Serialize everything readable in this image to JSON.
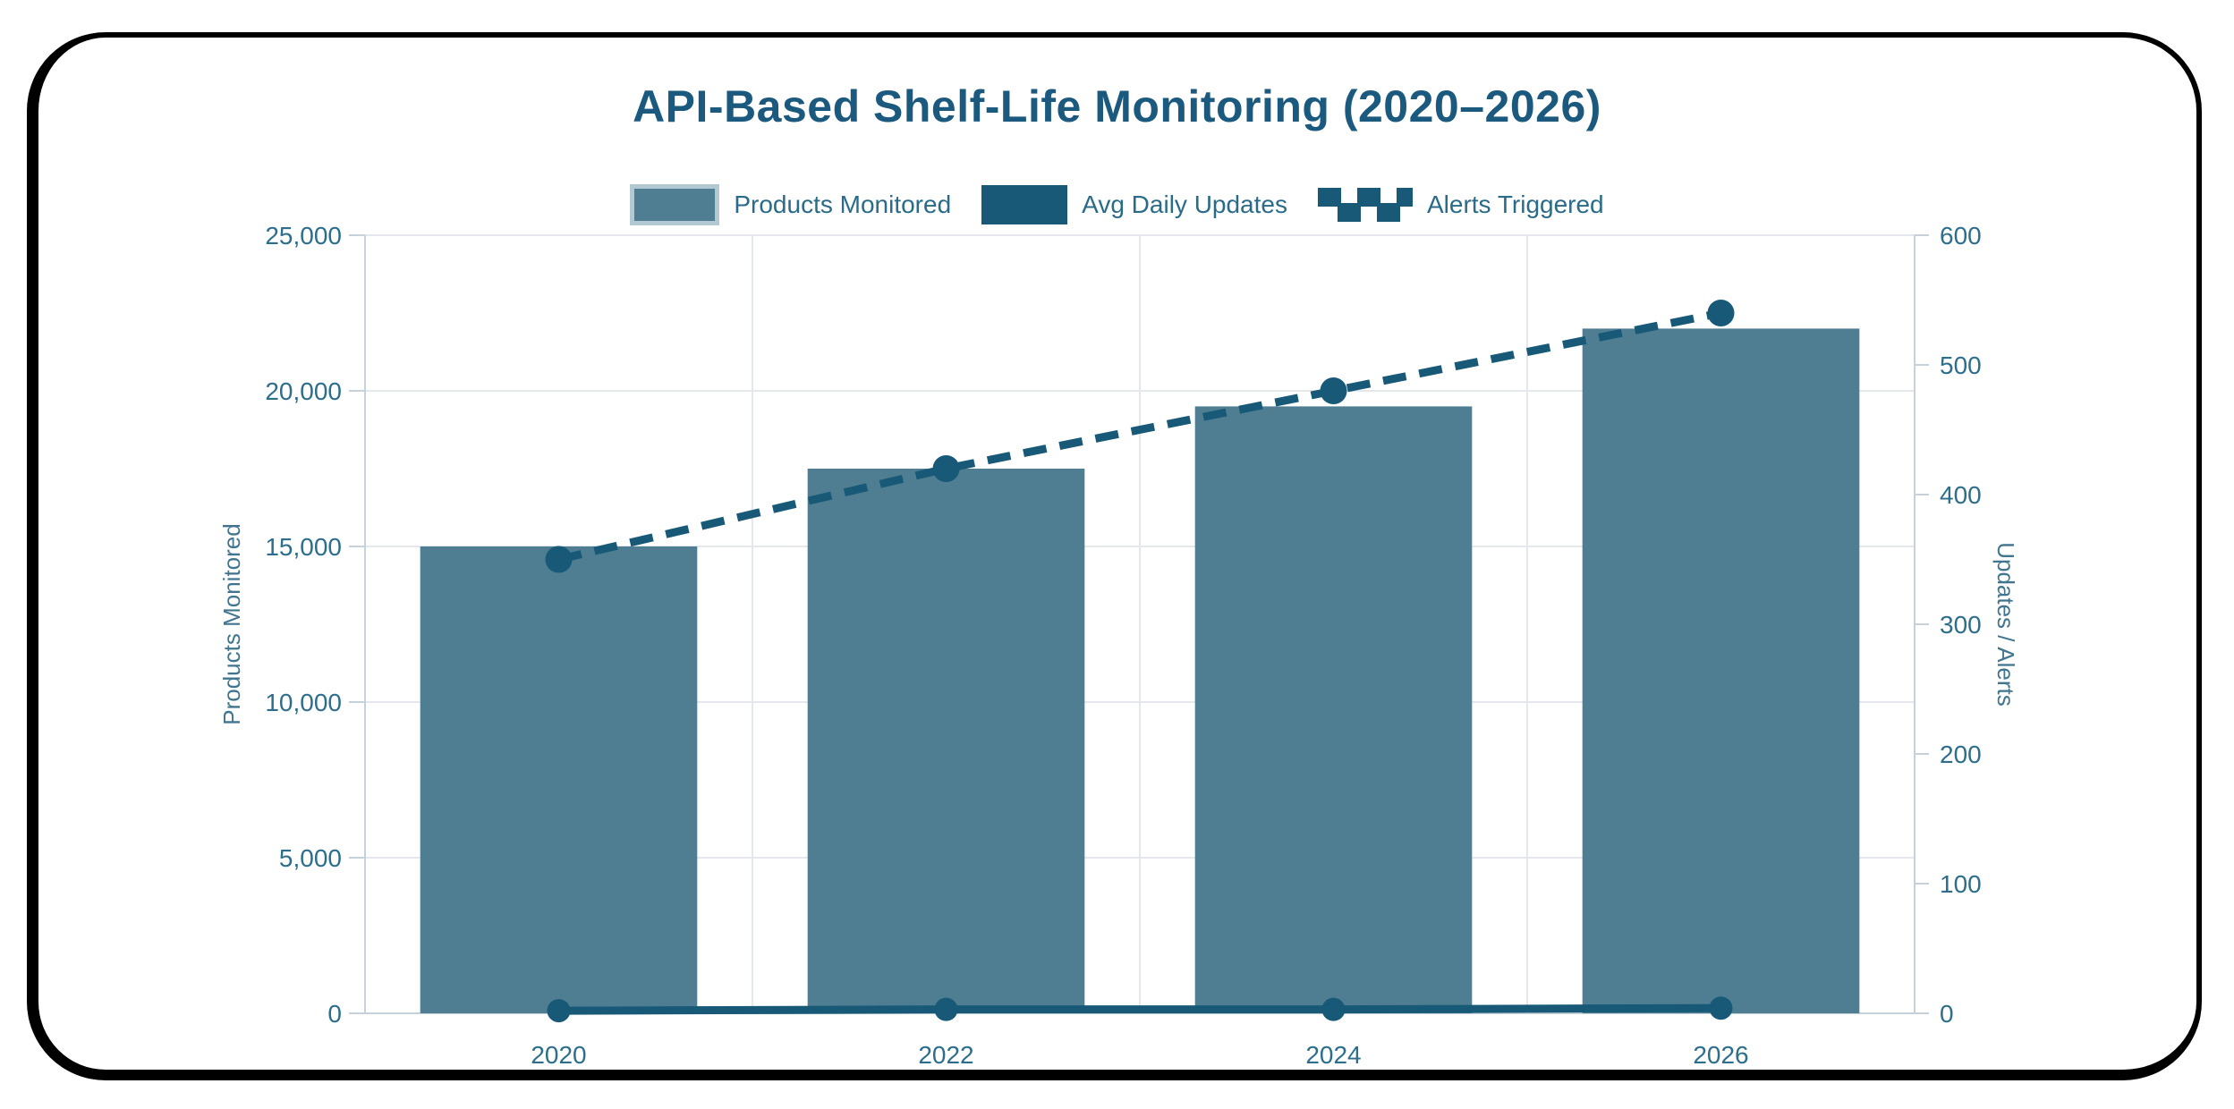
{
  "title": "API-Based Shelf-Life Monitoring (2020–2026)",
  "colors": {
    "background": "#ffffff",
    "frame": "#000000",
    "title_text": "#1b5a7e",
    "bar_fill": "#4f7e92",
    "bar_legend_border": "#b2c8d3",
    "dark_series": "#175977",
    "tick_label": "#2d6e8c",
    "axis_name": "#41758f",
    "gridline": "#e4e8ec",
    "axis_line": "#c6d1d9"
  },
  "legend": {
    "items": [
      {
        "label": "Products Monitored",
        "swatch": "bar-swatch"
      },
      {
        "label": "Avg Daily Updates",
        "swatch": "solid-line-swatch"
      },
      {
        "label": "Alerts Triggered",
        "swatch": "dashed-line-swatch"
      }
    ]
  },
  "chart_data": {
    "type": "bar",
    "title": "API-Based Shelf-Life Monitoring (2020–2026)",
    "categories": [
      "2020",
      "2022",
      "2024",
      "2026"
    ],
    "series": [
      {
        "name": "Products Monitored",
        "type": "bar",
        "axis": "left",
        "values": [
          15000,
          17500,
          19500,
          22000
        ]
      },
      {
        "name": "Avg Daily Updates",
        "type": "line",
        "style": "solid",
        "axis": "right",
        "values": [
          2,
          3,
          3,
          4
        ]
      },
      {
        "name": "Alerts Triggered",
        "type": "line",
        "style": "dashed",
        "axis": "right",
        "values": [
          350,
          420,
          480,
          540
        ]
      }
    ],
    "left_axis": {
      "label": "Products Monitored",
      "min": 0,
      "max": 25000,
      "step": 5000,
      "tick_labels": [
        "0",
        "5,000",
        "10,000",
        "15,000",
        "20,000",
        "25,000"
      ]
    },
    "right_axis": {
      "label": "Updates / Alerts",
      "min": 0,
      "max": 600,
      "step": 100,
      "tick_labels": [
        "0",
        "100",
        "200",
        "300",
        "400",
        "500",
        "600"
      ]
    },
    "x_tick_labels": [
      "2020",
      "2022",
      "2024",
      "2026"
    ],
    "grid": true,
    "legend_position": "top"
  }
}
